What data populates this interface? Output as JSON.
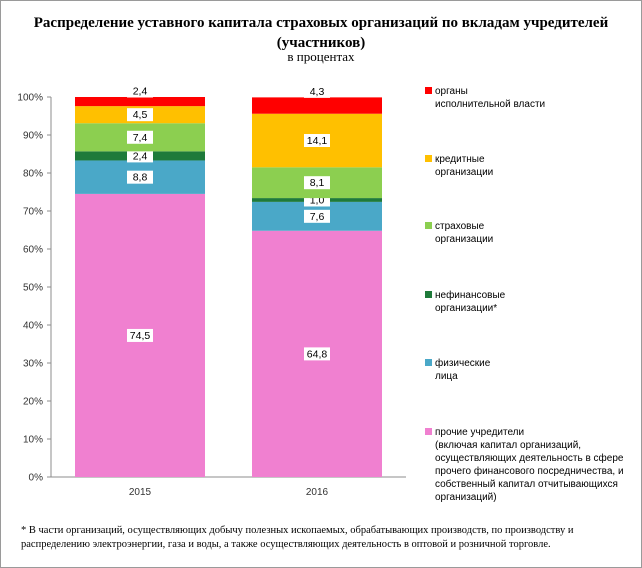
{
  "chart_data": {
    "type": "stacked-bar",
    "title": "Распределение уставного капитала страховых организаций по вкладам учредителей (участников)",
    "subtitle": "в процентах",
    "categories": [
      "2015",
      "2016"
    ],
    "y_ticks": [
      "0%",
      "10%",
      "20%",
      "30%",
      "40%",
      "50%",
      "60%",
      "70%",
      "80%",
      "90%",
      "100%"
    ],
    "ylim": [
      0,
      100
    ],
    "series": [
      {
        "name": "прочие учредители (включая капитал организаций, осуществляющих деятельность в сфере прочего финансового посредничества, и собственный капитал отчитывающихся организаций)",
        "color": "#f080d0",
        "values": [
          74.5,
          64.8
        ],
        "labels": [
          "74,5",
          "64,8"
        ]
      },
      {
        "name": "физические лица",
        "color": "#4aa8c8",
        "values": [
          8.8,
          7.6
        ],
        "labels": [
          "8,8",
          "7,6"
        ]
      },
      {
        "name": "нефинансовые организации*",
        "color": "#1e7a3a",
        "values": [
          2.4,
          1.0
        ],
        "labels": [
          "2,4",
          "1,0"
        ]
      },
      {
        "name": "страховые организации",
        "color": "#8ccf50",
        "values": [
          7.4,
          8.1
        ],
        "labels": [
          "7,4",
          "8,1"
        ]
      },
      {
        "name": "кредитные организации",
        "color": "#ffc000",
        "values": [
          4.5,
          14.1
        ],
        "labels": [
          "4,5",
          "14,1"
        ]
      },
      {
        "name": "органы исполнительной власти",
        "color": "#ff0000",
        "values": [
          2.4,
          4.3
        ],
        "labels": [
          "2,4",
          "4,3"
        ]
      }
    ]
  },
  "legend": [
    {
      "line1": "органы",
      "rest": "исполнительной власти",
      "color": "#ff0000"
    },
    {
      "line1": "кредитные",
      "rest": "организации",
      "color": "#ffc000"
    },
    {
      "line1": "страховые",
      "rest": "организации",
      "color": "#8ccf50"
    },
    {
      "line1": "нефинансовые",
      "rest": "организации*",
      "color": "#1e7a3a"
    },
    {
      "line1": "физические",
      "rest": "лица",
      "color": "#4aa8c8"
    },
    {
      "line1": "прочие учредители",
      "rest": "(включая капитал организаций, осуществляющих деятельность в сфере прочего финансового посредничества, и собственный капитал отчитывающихся организаций)",
      "color": "#f080d0"
    }
  ],
  "footnote": "* В части организаций, осуществляющих добычу полезных ископаемых, обрабатывающих производств, по производству и распределению электроэнергии, газа и воды, а также осуществляющих деятельность в оптовой и розничной торговле."
}
